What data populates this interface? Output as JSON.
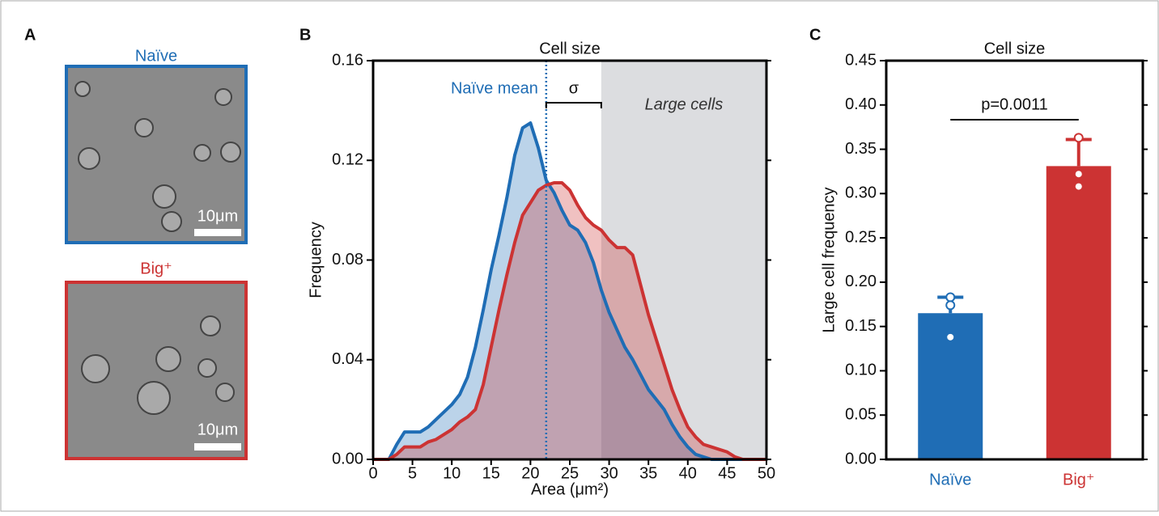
{
  "panel_labels": [
    "A",
    "B",
    "C"
  ],
  "panel_a": {
    "top_label": "Naïve",
    "bottom_label": "Big⁺",
    "scale_labels": [
      "10μm",
      "10μm"
    ]
  },
  "chart_data": [
    {
      "type": "area",
      "title": "Cell size",
      "x_label": "Area (μm²)",
      "y_label": "Frequency",
      "x": [
        0,
        1,
        2,
        3,
        4,
        5,
        6,
        7,
        8,
        9,
        10,
        11,
        12,
        13,
        14,
        15,
        16,
        17,
        18,
        19,
        20,
        21,
        22,
        23,
        24,
        25,
        26,
        27,
        28,
        29,
        30,
        31,
        32,
        33,
        34,
        35,
        36,
        37,
        38,
        39,
        40,
        41,
        42,
        43,
        44,
        45,
        46,
        47,
        48,
        49,
        50
      ],
      "series": [
        {
          "name": "Naïve",
          "color": "#1f6db5",
          "values": [
            0,
            0,
            0,
            0.006,
            0.011,
            0.011,
            0.011,
            0.013,
            0.016,
            0.019,
            0.022,
            0.026,
            0.033,
            0.045,
            0.06,
            0.076,
            0.09,
            0.105,
            0.122,
            0.133,
            0.135,
            0.125,
            0.112,
            0.107,
            0.1,
            0.094,
            0.092,
            0.087,
            0.079,
            0.068,
            0.059,
            0.052,
            0.045,
            0.04,
            0.034,
            0.028,
            0.024,
            0.02,
            0.014,
            0.009,
            0.005,
            0.002,
            0.001,
            0,
            0,
            0,
            0,
            0,
            0,
            0,
            0
          ]
        },
        {
          "name": "Big⁺",
          "color": "#cc3333",
          "values": [
            0,
            0,
            0,
            0.002,
            0.005,
            0.005,
            0.005,
            0.007,
            0.008,
            0.01,
            0.012,
            0.015,
            0.017,
            0.02,
            0.03,
            0.045,
            0.06,
            0.074,
            0.087,
            0.098,
            0.103,
            0.108,
            0.11,
            0.111,
            0.111,
            0.108,
            0.102,
            0.097,
            0.094,
            0.092,
            0.088,
            0.085,
            0.085,
            0.082,
            0.07,
            0.058,
            0.048,
            0.038,
            0.028,
            0.02,
            0.013,
            0.009,
            0.006,
            0.005,
            0.004,
            0.003,
            0.001,
            0,
            0,
            0,
            0
          ]
        }
      ],
      "xlim": [
        0,
        50
      ],
      "xticks": [
        0,
        5,
        10,
        15,
        20,
        25,
        30,
        35,
        40,
        45,
        50
      ],
      "ylim": [
        0,
        0.16
      ],
      "yticks": [
        {
          "value": 0,
          "label": "0.00"
        },
        0.04,
        0.08,
        0.12,
        0.16
      ],
      "annotations": [
        {
          "text": "Naïve mean",
          "x": 22
        },
        {
          "text": "σ",
          "x": [
            22,
            29
          ]
        },
        {
          "text": "Large cells",
          "x": [
            29,
            50
          ]
        }
      ]
    },
    {
      "type": "bar",
      "title": "Cell size",
      "y_label": "Large cell frequency",
      "categories": [
        "Naïve",
        "Big⁺"
      ],
      "colors": [
        "#1f6db5",
        "#cc3333"
      ],
      "values": [
        0.165,
        0.331
      ],
      "errors": [
        0.018,
        0.03
      ],
      "points": [
        [
          0.183,
          0.174,
          0.138
        ],
        [
          0.363,
          0.322,
          0.308
        ]
      ],
      "ylim": [
        0,
        0.45
      ],
      "yticks": [
        {
          "value": 0,
          "label": "0.00"
        },
        0.05,
        {
          "value": 0.1,
          "label": "0.10"
        },
        0.15,
        {
          "value": 0.2,
          "label": "0.20"
        },
        0.25,
        {
          "value": 0.3,
          "label": "0.30"
        },
        0.35,
        {
          "value": 0.4,
          "label": "0.40"
        },
        0.45
      ],
      "annotations": [
        {
          "text": "p=0.0011"
        }
      ]
    }
  ]
}
